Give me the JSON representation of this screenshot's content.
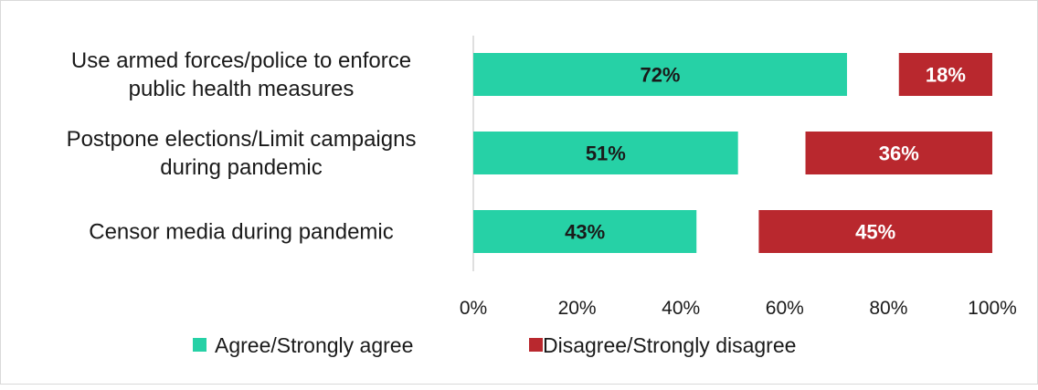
{
  "chart_data": {
    "type": "bar",
    "orientation": "horizontal",
    "stacked": false,
    "categories": [
      [
        "Use armed forces/police to enforce",
        "public health measures"
      ],
      [
        "Postpone elections/Limit campaigns",
        "during pandemic"
      ],
      [
        "Censor media during pandemic"
      ]
    ],
    "series": [
      {
        "name": "Agree/Strongly agree",
        "color": "#26d1a6",
        "label_color": "#1a1a1a",
        "align": "start",
        "values": [
          72,
          51,
          43
        ]
      },
      {
        "name": "Disagree/Strongly disagree",
        "color": "#b9282e",
        "label_color": "#ffffff",
        "align": "end",
        "values": [
          18,
          36,
          45
        ]
      }
    ],
    "data_labels": [
      [
        "72%",
        "51%",
        "43%"
      ],
      [
        "18%",
        "36%",
        "45%"
      ]
    ],
    "xlim": [
      0,
      100
    ],
    "xticks": [
      0,
      20,
      40,
      60,
      80,
      100
    ],
    "xtick_labels": [
      "0%",
      "20%",
      "40%",
      "60%",
      "80%",
      "100%"
    ],
    "grid": false,
    "legend": {
      "position": "bottom"
    },
    "title": "",
    "xlabel": "",
    "ylabel": ""
  }
}
